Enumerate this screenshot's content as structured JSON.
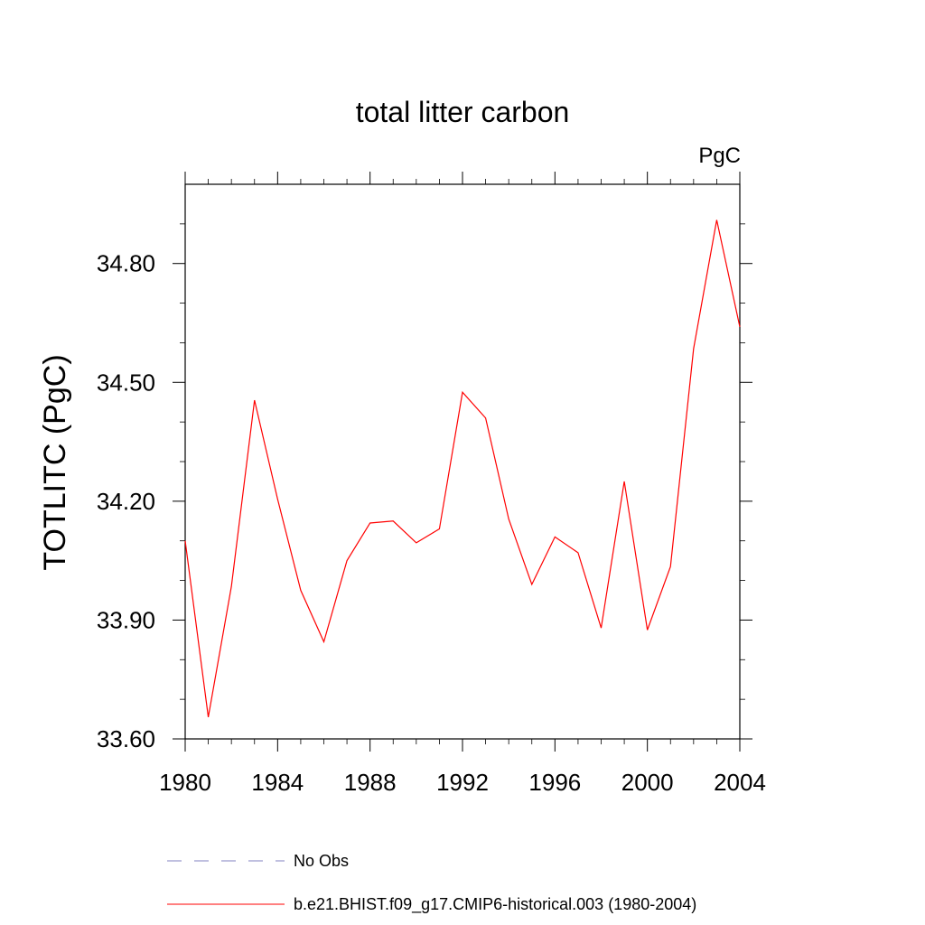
{
  "chart_data": {
    "type": "line",
    "title": "total litter carbon",
    "units_label": "PgC",
    "xlabel": "",
    "ylabel": "TOTLITC  (PgC)",
    "xlim": [
      1980,
      2004
    ],
    "ylim": [
      33.6,
      35.0
    ],
    "xticks": [
      1980,
      1984,
      1988,
      1992,
      1996,
      2000,
      2004
    ],
    "yticks": [
      "33.60",
      "33.90",
      "34.20",
      "34.50",
      "34.80"
    ],
    "series": [
      {
        "name": "b.e21.BHIST.f09_g17.CMIP6-historical.003 (1980-2004)",
        "color": "#ff0000",
        "style": "solid",
        "x": [
          1980,
          1981,
          1982,
          1983,
          1984,
          1985,
          1986,
          1987,
          1988,
          1989,
          1990,
          1991,
          1992,
          1993,
          1994,
          1995,
          1996,
          1997,
          1998,
          1999,
          2000,
          2001,
          2002,
          2003,
          2004
        ],
        "values": [
          34.1,
          33.655,
          33.985,
          34.455,
          34.205,
          33.975,
          33.845,
          34.05,
          34.145,
          34.15,
          34.095,
          34.13,
          34.475,
          34.41,
          34.155,
          33.99,
          34.11,
          34.07,
          33.88,
          34.25,
          33.875,
          34.035,
          34.585,
          34.91,
          34.64
        ]
      }
    ],
    "legend": [
      {
        "label": "No Obs",
        "color": "#8080c0",
        "style": "dashed"
      },
      {
        "label": "b.e21.BHIST.f09_g17.CMIP6-historical.003 (1980-2004)",
        "color": "#ff0000",
        "style": "solid"
      }
    ]
  }
}
